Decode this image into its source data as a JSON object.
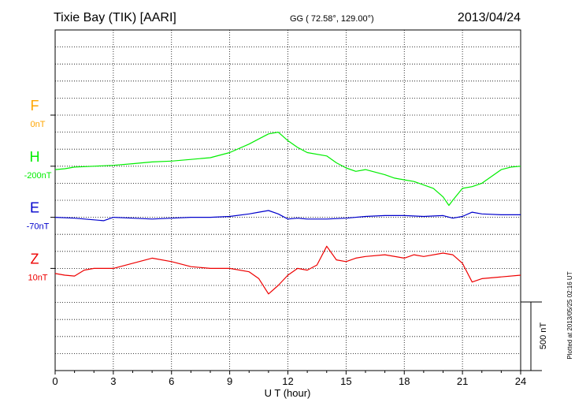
{
  "header": {
    "station": "Tixie Bay (TIK)  [AARI]",
    "coords": "GG ( 72.58°, 129.00°)",
    "date": "2013/04/24"
  },
  "side_note": "Plotted at 2013/05/25 02:16 UT",
  "scale_label": "500 nT",
  "chart_data": {
    "type": "line",
    "xlabel": "U T (hour)",
    "ylabel": "",
    "xlim": [
      0,
      24
    ],
    "xticks": [
      0,
      3,
      6,
      9,
      12,
      15,
      18,
      21,
      24
    ],
    "grid": true,
    "ylim_nT": [
      -1000,
      1000
    ],
    "scale_bar_nT": 500,
    "series": [
      {
        "name": "F",
        "baseline_label": "0nT",
        "color": "#ffa500",
        "offset_nT": 500,
        "x": [],
        "y": []
      },
      {
        "name": "H",
        "baseline_label": "-200nT",
        "color": "#00ee00",
        "offset_nT": 200,
        "x": [
          0,
          0.5,
          1,
          2,
          3,
          4,
          5,
          6,
          7,
          8,
          9,
          10,
          10.5,
          11,
          11.5,
          12,
          12.5,
          13,
          14,
          14.5,
          15,
          15.5,
          16,
          17,
          17.5,
          18,
          18.5,
          19,
          19.5,
          20,
          20.3,
          20.5,
          21,
          21.5,
          22,
          23,
          23.5,
          24
        ],
        "y": [
          -20,
          -15,
          -5,
          0,
          5,
          15,
          25,
          30,
          40,
          50,
          80,
          130,
          160,
          190,
          200,
          150,
          110,
          80,
          60,
          20,
          -10,
          -30,
          -20,
          -50,
          -70,
          -80,
          -90,
          -110,
          -130,
          -180,
          -230,
          -200,
          -130,
          -120,
          -100,
          -20,
          -5,
          0
        ]
      },
      {
        "name": "E",
        "baseline_label": "-70nT",
        "color": "#0000cc",
        "offset_nT": -100,
        "x": [
          0,
          1,
          2,
          2.5,
          3,
          4,
          5,
          6,
          7,
          8,
          9,
          10,
          10.5,
          11,
          11.5,
          12,
          12.5,
          13,
          14,
          15,
          16,
          17,
          18,
          19,
          20,
          20.5,
          21,
          21.5,
          22,
          23,
          24
        ],
        "y": [
          0,
          -5,
          -15,
          -20,
          0,
          -5,
          -10,
          -5,
          0,
          0,
          5,
          20,
          30,
          40,
          20,
          -10,
          -5,
          -10,
          -10,
          -5,
          5,
          10,
          10,
          5,
          10,
          -5,
          5,
          30,
          20,
          15,
          15
        ]
      },
      {
        "name": "Z",
        "baseline_label": "10nT",
        "color": "#ee0000",
        "offset_nT": -400,
        "x": [
          0,
          0.5,
          1,
          1.5,
          2,
          3,
          4,
          5,
          6,
          7,
          8,
          9,
          10,
          10.5,
          11,
          11.5,
          12,
          12.5,
          13,
          13.5,
          14,
          14.5,
          15,
          15.5,
          16,
          17,
          18,
          18.5,
          19,
          20,
          20.5,
          21,
          21.5,
          22,
          23,
          24
        ],
        "y": [
          -30,
          -40,
          -45,
          -10,
          0,
          0,
          30,
          60,
          40,
          10,
          0,
          0,
          -20,
          -60,
          -150,
          -100,
          -40,
          0,
          -10,
          20,
          130,
          50,
          40,
          60,
          70,
          80,
          60,
          80,
          70,
          90,
          80,
          30,
          -80,
          -60,
          -50,
          -40
        ]
      }
    ]
  }
}
